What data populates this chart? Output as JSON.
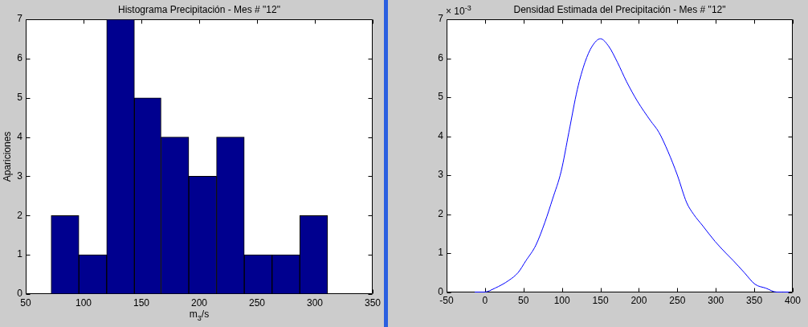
{
  "chart_data": [
    {
      "type": "histogram",
      "title": "Histograma Precipitación - Mes # \"12\"",
      "xlabel": "m$_{3}$/s",
      "ylabel": "Apariciones",
      "bins": [
        72,
        96,
        120,
        144,
        167,
        191,
        215,
        239,
        263,
        287,
        311
      ],
      "values": [
        2,
        1,
        7,
        5,
        4,
        3,
        4,
        1,
        1,
        2
      ],
      "color": "#00008f",
      "xlim": [
        50,
        350
      ],
      "xticks": [
        50,
        100,
        150,
        200,
        250,
        300,
        350
      ],
      "ylim": [
        0,
        7
      ],
      "yticks": [
        0,
        1,
        2,
        3,
        4,
        5,
        6,
        7
      ]
    },
    {
      "type": "line",
      "title": "Densidad Estimada del Precipitación - Mes # \"12\"",
      "annotations": [
        "× 10$^{-3}$"
      ],
      "x": [
        -13,
        -1,
        13,
        31,
        43,
        53,
        66,
        78,
        88,
        99,
        109,
        120,
        130,
        139,
        150,
        161,
        172,
        184,
        198,
        215,
        226,
        238,
        250,
        262,
        271,
        283,
        299,
        313,
        323,
        337,
        351,
        365,
        379,
        395
      ],
      "values": [
        0,
        0,
        0.1,
        0.3,
        0.5,
        0.8,
        1.2,
        1.8,
        2.4,
        3.1,
        4.1,
        5.2,
        5.9,
        6.3,
        6.5,
        6.3,
        5.9,
        5.4,
        4.9,
        4.4,
        4.1,
        3.6,
        3.0,
        2.3,
        2.0,
        1.7,
        1.3,
        1.0,
        0.8,
        0.5,
        0.2,
        0.1,
        0,
        0
      ],
      "color": "#0000ff",
      "marker": "none",
      "line_style": "solid",
      "xlim": [
        -50,
        400
      ],
      "xticks": [
        -50,
        0,
        50,
        100,
        150,
        200,
        250,
        300,
        350,
        400
      ],
      "ylim": [
        0,
        7
      ],
      "yticks": [
        0,
        1,
        2,
        3,
        4,
        5,
        6,
        7
      ]
    }
  ]
}
